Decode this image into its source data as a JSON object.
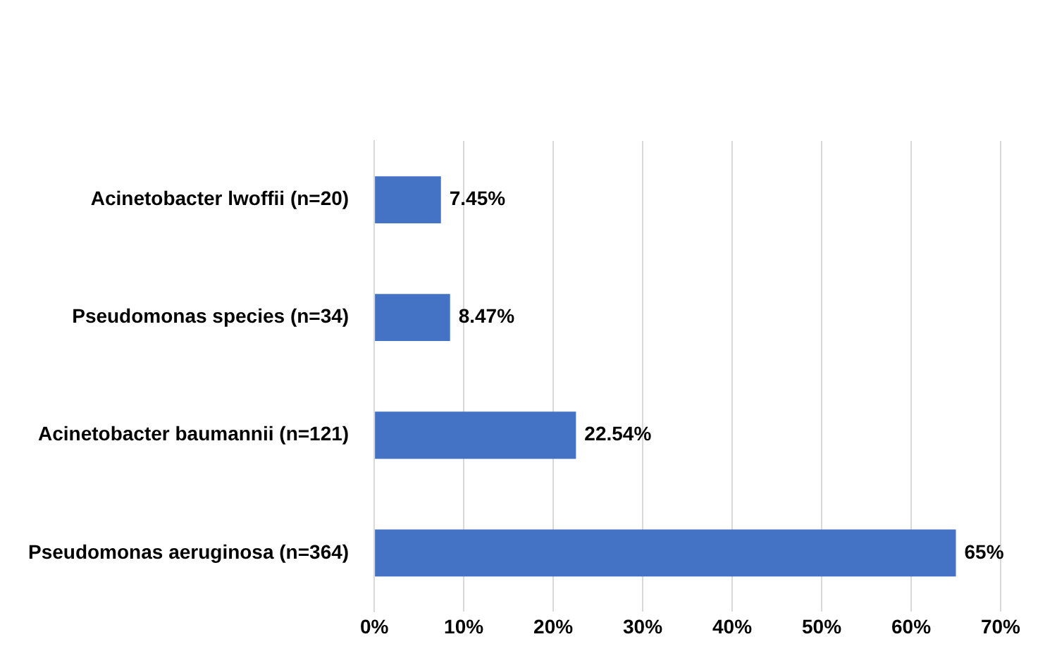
{
  "chart_data": {
    "type": "bar",
    "orientation": "horizontal",
    "categories": [
      "Acinetobacter lwoffii (n=20)",
      "Pseudomonas species (n=34)",
      "Acinetobacter baumannii (n=121)",
      "Pseudomonas aeruginosa (n=364)"
    ],
    "values": [
      7.45,
      8.47,
      22.54,
      65
    ],
    "value_labels": [
      "7.45%",
      "8.47%",
      "22.54%",
      "65%"
    ],
    "color": "#4472c4",
    "xlim": [
      0,
      70
    ],
    "xticks": [
      {
        "value": 0,
        "label": "0%"
      },
      {
        "value": 10,
        "label": "10%"
      },
      {
        "value": 20,
        "label": "20%"
      },
      {
        "value": 30,
        "label": "30%"
      },
      {
        "value": 40,
        "label": "40%"
      },
      {
        "value": 50,
        "label": "50%"
      },
      {
        "value": 60,
        "label": "60%"
      },
      {
        "value": 70,
        "label": "70%"
      }
    ],
    "grid": "x",
    "legend": false
  }
}
